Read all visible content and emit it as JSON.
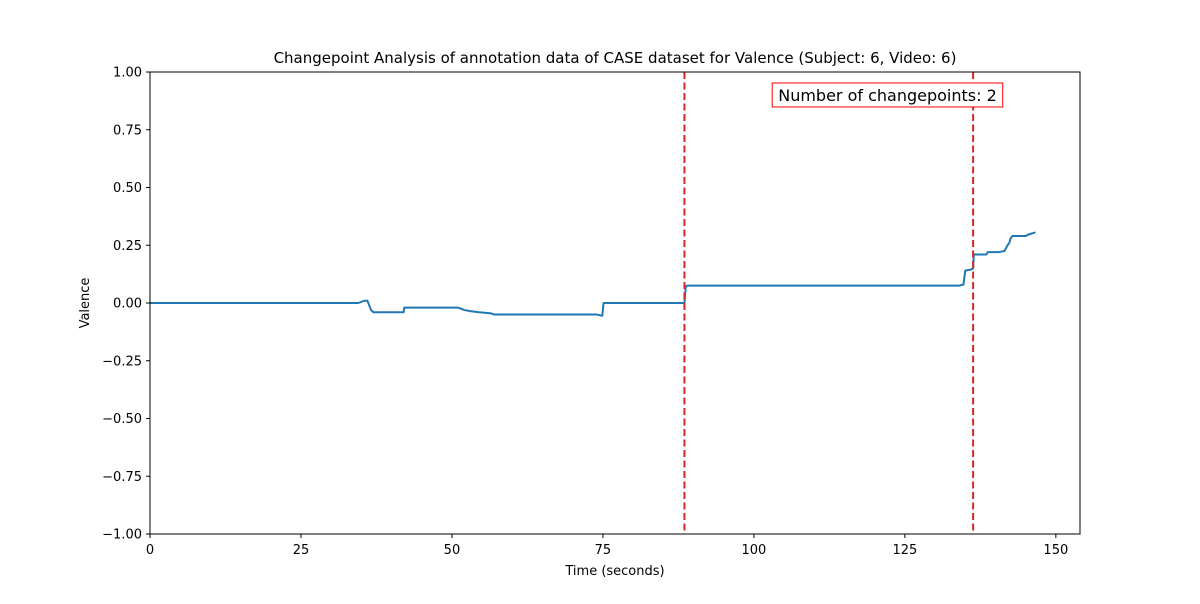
{
  "chart_data": {
    "type": "line",
    "title": "Changepoint Analysis of annotation data of CASE dataset for Valence (Subject: 6, Video: 6)",
    "xlabel": "Time (seconds)",
    "ylabel": "Valence",
    "xlim": [
      0,
      154
    ],
    "ylim": [
      -1.0,
      1.0
    ],
    "xticks": [
      0,
      25,
      50,
      75,
      100,
      125,
      150
    ],
    "yticks": [
      -1.0,
      -0.75,
      -0.5,
      -0.25,
      0.0,
      0.25,
      0.5,
      0.75,
      1.0
    ],
    "ytick_labels": [
      "−1.00",
      "−0.75",
      "−0.50",
      "−0.25",
      "0.00",
      "0.25",
      "0.50",
      "0.75",
      "1.00"
    ],
    "grid": false,
    "series": [
      {
        "color": "#1f77b4",
        "x": [
          0,
          34.5,
          35.5,
          36.0,
          36.3,
          36.6,
          37.0,
          42.0,
          42.1,
          51.0,
          52.0,
          53.0,
          54.5,
          56.5,
          57.0,
          74.0,
          74.8,
          74.9,
          75.1,
          88.5,
          88.7,
          88.9,
          134.0,
          134.7,
          135.0,
          136.0,
          136.3,
          136.4,
          138.5,
          138.7,
          140.5,
          141.5,
          141.8,
          142.0,
          142.3,
          142.5,
          142.8,
          145.0,
          145.3,
          146.5
        ],
        "y": [
          0.0,
          0.0,
          0.01,
          0.01,
          -0.01,
          -0.03,
          -0.04,
          -0.04,
          -0.02,
          -0.02,
          -0.03,
          -0.035,
          -0.04,
          -0.045,
          -0.05,
          -0.05,
          -0.055,
          -0.055,
          0.0,
          0.0,
          0.07,
          0.075,
          0.075,
          0.08,
          0.14,
          0.145,
          0.15,
          0.21,
          0.21,
          0.22,
          0.22,
          0.225,
          0.24,
          0.25,
          0.26,
          0.28,
          0.29,
          0.29,
          0.295,
          0.305
        ]
      }
    ],
    "changepoints": [
      88.5,
      136.3
    ],
    "changepoint_color": "#d62728",
    "annotation": {
      "text": "Number of changepoints: 2",
      "color": "#ff0000",
      "location": "top-right"
    }
  }
}
